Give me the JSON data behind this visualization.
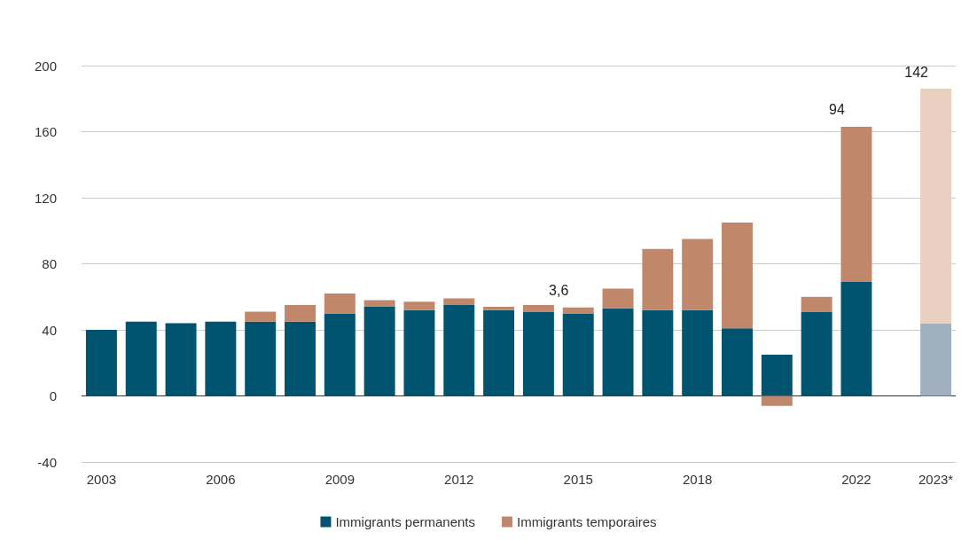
{
  "chart_data": {
    "type": "bar",
    "stacked": true,
    "categories": [
      "2003",
      null,
      null,
      "2006",
      null,
      null,
      "2009",
      null,
      null,
      "2012",
      null,
      null,
      "2015",
      null,
      null,
      "2018",
      null,
      null,
      null,
      "2022",
      null,
      "2023*"
    ],
    "series": [
      {
        "name": "Immigrants permanents",
        "color": "#00546f",
        "colors": [
          "#00546f",
          "#00546f",
          "#00546f",
          "#00546f",
          "#00546f",
          "#00546f",
          "#00546f",
          "#00546f",
          "#00546f",
          "#00546f",
          "#00546f",
          "#00546f",
          "#00546f",
          "#00546f",
          "#00546f",
          "#00546f",
          "#00546f",
          "#00546f",
          "#00546f",
          "#00546f",
          "#00546f",
          "#a0b0bf"
        ],
        "values": [
          40,
          45,
          44,
          45,
          45,
          45,
          50,
          54,
          52,
          55,
          52,
          51,
          50,
          53,
          52,
          52,
          41,
          25,
          51,
          69,
          null,
          44
        ]
      },
      {
        "name": "Immigrants temporaires",
        "color": "#c0876a",
        "colors": [
          "#c0876a",
          "#c0876a",
          "#c0876a",
          "#c0876a",
          "#c0876a",
          "#c0876a",
          "#c0876a",
          "#c0876a",
          "#c0876a",
          "#c0876a",
          "#c0876a",
          "#c0876a",
          "#c0876a",
          "#c0876a",
          "#c0876a",
          "#c0876a",
          "#c0876a",
          "#c0876a",
          "#c0876a",
          "#c0876a",
          "#c0876a",
          "#e8cfbf"
        ],
        "values": [
          null,
          null,
          null,
          null,
          6,
          10,
          12,
          4,
          5,
          4,
          2,
          4,
          3.6,
          12,
          37,
          43,
          64,
          -6,
          9,
          94,
          null,
          142
        ],
        "value_labels": [
          null,
          null,
          null,
          null,
          null,
          null,
          null,
          null,
          null,
          null,
          null,
          null,
          "3,6",
          null,
          null,
          null,
          null,
          null,
          null,
          "94",
          null,
          "142"
        ]
      }
    ],
    "ylim": [
      -40,
      200
    ],
    "yticks": [
      -40,
      0,
      40,
      80,
      120,
      160,
      200
    ],
    "grid": "y",
    "legend": "bottom"
  }
}
